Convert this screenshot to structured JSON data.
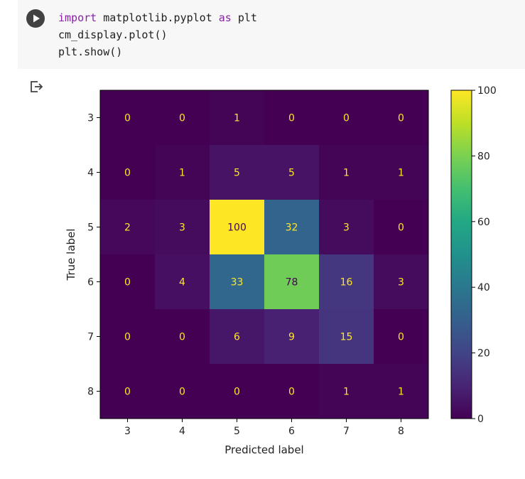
{
  "cell": {
    "code_lines": [
      [
        {
          "t": "import",
          "k": true
        },
        {
          "t": " matplotlib.pyplot "
        },
        {
          "t": "as",
          "k": true
        },
        {
          "t": " plt"
        }
      ],
      [
        {
          "t": "cm_display.plot()"
        }
      ],
      [
        {
          "t": "plt.show()"
        }
      ]
    ]
  },
  "icons": {
    "run": "play-circle-icon",
    "output": "output-redirect-icon"
  },
  "colors": {
    "keyword": "#8b1fa8",
    "code_bg": "#f7f7f7",
    "run_button": "#424242",
    "text_light": "#fde725",
    "text_dark": "#440154"
  },
  "chart_data": {
    "type": "heatmap",
    "title": "",
    "xlabel": "Predicted label",
    "ylabel": "True label",
    "x_categories": [
      "3",
      "4",
      "5",
      "6",
      "7",
      "8"
    ],
    "y_categories": [
      "3",
      "4",
      "5",
      "6",
      "7",
      "8"
    ],
    "values": [
      [
        0,
        0,
        1,
        0,
        0,
        0
      ],
      [
        0,
        1,
        5,
        5,
        1,
        1
      ],
      [
        2,
        3,
        100,
        32,
        3,
        0
      ],
      [
        0,
        4,
        33,
        78,
        16,
        3
      ],
      [
        0,
        0,
        6,
        9,
        15,
        0
      ],
      [
        0,
        0,
        0,
        0,
        1,
        1
      ]
    ],
    "colormap": "viridis",
    "colorbar": {
      "min": 0,
      "max": 100,
      "ticks": [
        "0",
        "20",
        "40",
        "60",
        "80",
        "100"
      ]
    },
    "grid": false
  }
}
